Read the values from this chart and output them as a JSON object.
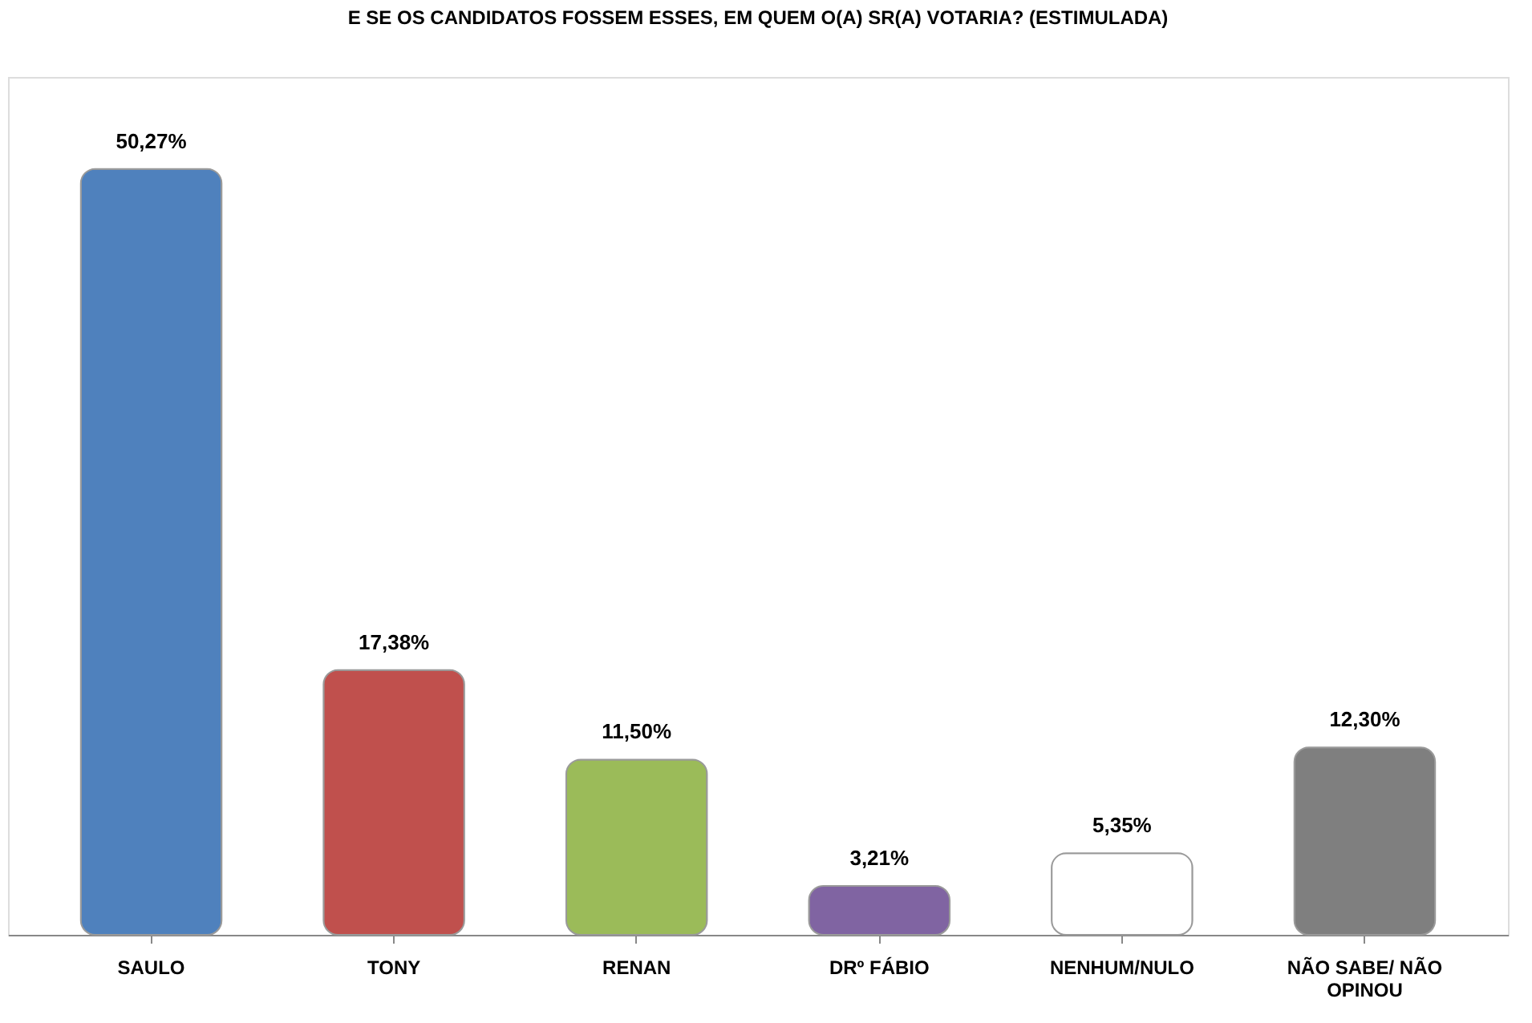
{
  "chart_data": {
    "type": "bar",
    "title": "E SE OS CANDIDATOS FOSSEM ESSES, EM QUEM O(A) SR(A) VOTARIA? (ESTIMULADA)",
    "categories": [
      "SAULO",
      "TONY",
      "RENAN",
      "DRº FÁBIO",
      "NENHUM/NULO",
      "NÃO SABE/ NÃO OPINOU"
    ],
    "values": [
      50.27,
      17.38,
      11.5,
      3.21,
      5.35,
      12.3
    ],
    "colors": [
      "#4f81bd",
      "#c0504d",
      "#9bbb59",
      "#8064a2",
      "#ffffff",
      "#7f7f7f"
    ],
    "value_labels": [
      "50,27%",
      "17,38%",
      "11,50%",
      "3,21%",
      "5,35%",
      "12,30%"
    ]
  }
}
